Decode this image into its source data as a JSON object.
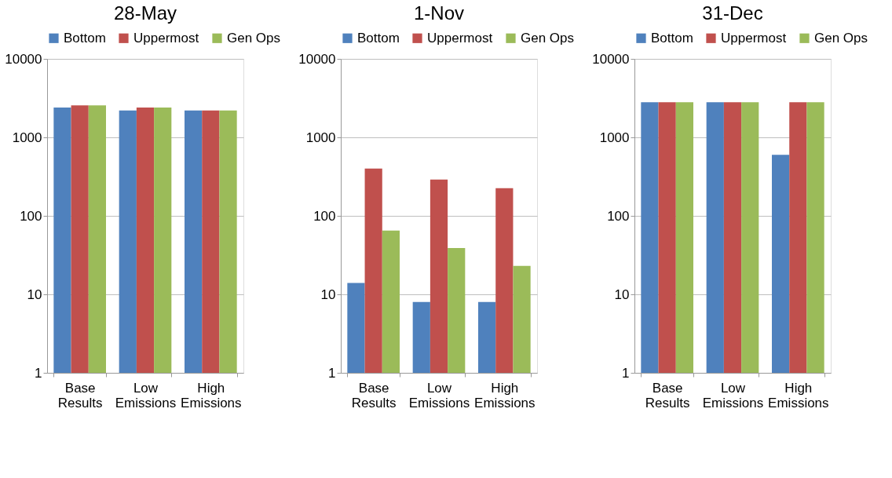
{
  "chart_data": [
    {
      "type": "bar",
      "title": "28-May",
      "categories": [
        "Base Results",
        "Low Emissions",
        "High Emissions"
      ],
      "log": "y",
      "ylim": [
        1,
        10000
      ],
      "yticks": [
        1,
        10,
        100,
        1000,
        10000
      ],
      "grid": "y",
      "legend": "top",
      "series": [
        {
          "name": "Bottom",
          "color": "#4f81bd",
          "values": [
            2400,
            2200,
            2200
          ]
        },
        {
          "name": "Uppermost",
          "color": "#c0504d",
          "values": [
            2550,
            2400,
            2200
          ]
        },
        {
          "name": "Gen Ops",
          "color": "#9bbb59",
          "values": [
            2550,
            2400,
            2200
          ]
        }
      ]
    },
    {
      "type": "bar",
      "title": "1-Nov",
      "categories": [
        "Base Results",
        "Low Emissions",
        "High Emissions"
      ],
      "log": "y",
      "ylim": [
        1,
        10000
      ],
      "yticks": [
        1,
        10,
        100,
        1000,
        10000
      ],
      "grid": "y",
      "legend": "top",
      "series": [
        {
          "name": "Bottom",
          "color": "#4f81bd",
          "values": [
            14,
            8,
            8
          ]
        },
        {
          "name": "Uppermost",
          "color": "#c0504d",
          "values": [
            400,
            290,
            225
          ]
        },
        {
          "name": "Gen Ops",
          "color": "#9bbb59",
          "values": [
            65,
            39,
            23
          ]
        }
      ]
    },
    {
      "type": "bar",
      "title": "31-Dec",
      "categories": [
        "Base Results",
        "Low Emissions",
        "High Emissions"
      ],
      "log": "y",
      "ylim": [
        1,
        10000
      ],
      "yticks": [
        1,
        10,
        100,
        1000,
        10000
      ],
      "grid": "y",
      "legend": "top",
      "series": [
        {
          "name": "Bottom",
          "color": "#4f81bd",
          "values": [
            2800,
            2800,
            600
          ]
        },
        {
          "name": "Uppermost",
          "color": "#c0504d",
          "values": [
            2800,
            2800,
            2800
          ]
        },
        {
          "name": "Gen Ops",
          "color": "#9bbb59",
          "values": [
            2800,
            2800,
            2800
          ]
        }
      ]
    }
  ]
}
